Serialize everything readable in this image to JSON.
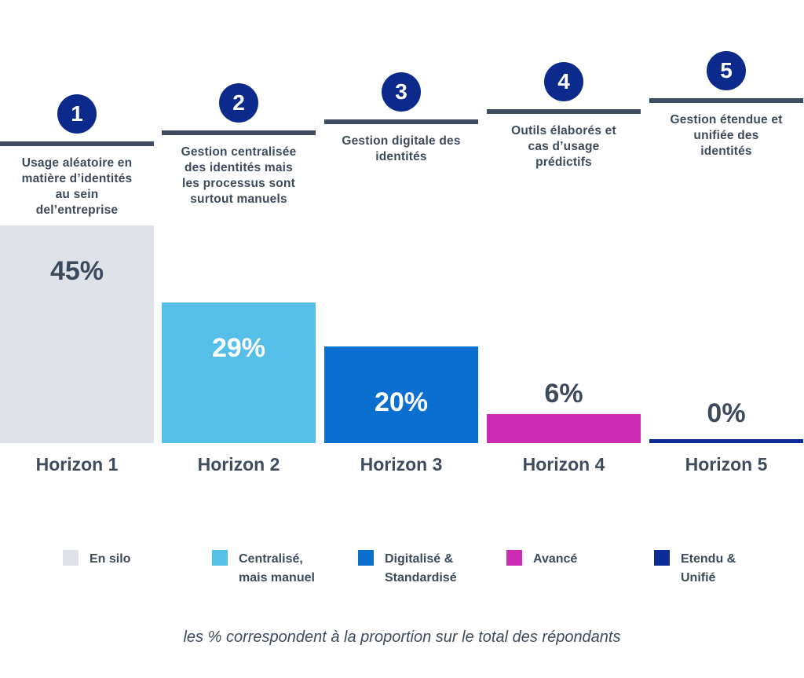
{
  "chart_data": {
    "type": "bar",
    "categories": [
      "Horizon 1",
      "Horizon 2",
      "Horizon 3",
      "Horizon 4",
      "Horizon 5"
    ],
    "values": [
      45,
      29,
      20,
      6,
      0
    ],
    "value_labels": [
      "45%",
      "29%",
      "20%",
      "6%",
      "0%"
    ],
    "colors": [
      "#dfe2e9",
      "#56bfe8",
      "#0a6fce",
      "#cc2bb4",
      "#0b2a95"
    ],
    "label_colors": [
      "#3d4a5c",
      "#ffffff",
      "#ffffff",
      "#3d4a5c",
      "#3d4a5c"
    ],
    "steps": [
      {
        "number": "1",
        "description": "Usage aléatoire en\nmatière d’identités\nau sein\ndel’entreprise"
      },
      {
        "number": "2",
        "description": "Gestion centralisée\ndes identités mais\nles processus sont\nsurtout manuels"
      },
      {
        "number": "3",
        "description": "Gestion digitale des\nidentités"
      },
      {
        "number": "4",
        "description": "Outils élaborés et\ncas d’usage\nprédictifs"
      },
      {
        "number": "5",
        "description": "Gestion étendue et\nunifiée des\nidentités"
      }
    ],
    "legend": [
      {
        "label": "En silo",
        "color": "#dfe2e9"
      },
      {
        "label": "Centralisé,\nmais manuel",
        "color": "#56bfe8"
      },
      {
        "label": "Digitalisé &\nStandardisé",
        "color": "#0a6fce"
      },
      {
        "label": "Avancé",
        "color": "#cc2bb4"
      },
      {
        "label": "Etendu &\nUnifié",
        "color": "#0b2a95"
      }
    ],
    "footnote": "les % correspondent à la proportion sur le total des répondants",
    "ylim": [
      0,
      45
    ]
  }
}
